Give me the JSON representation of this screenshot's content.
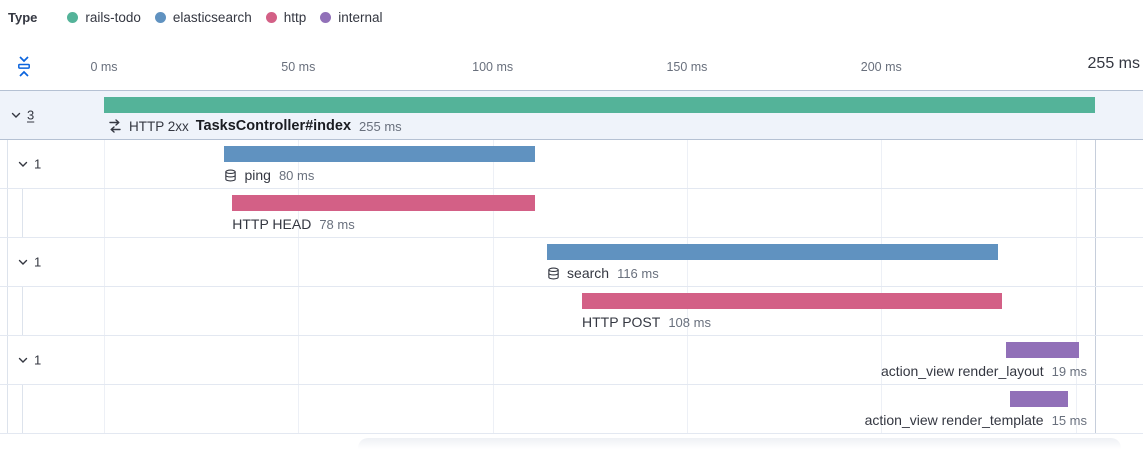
{
  "legend": {
    "title": "Type",
    "items": [
      {
        "label": "rails-todo",
        "color": "#54B399"
      },
      {
        "label": "elasticsearch",
        "color": "#6092C0"
      },
      {
        "label": "http",
        "color": "#D36086"
      },
      {
        "label": "internal",
        "color": "#9170B8"
      }
    ]
  },
  "axis": {
    "ticks": [
      {
        "label": "0 ms",
        "ms": 0
      },
      {
        "label": "50 ms",
        "ms": 50
      },
      {
        "label": "100 ms",
        "ms": 100
      },
      {
        "label": "150 ms",
        "ms": 150
      },
      {
        "label": "200 ms",
        "ms": 200
      }
    ],
    "grid_ms": [
      0,
      50,
      100,
      150,
      200,
      250
    ],
    "total": {
      "label": "255 ms",
      "ms": 255
    }
  },
  "chart_data": {
    "type": "waterfall",
    "title": "Trace timeline waterfall",
    "x_unit": "ms",
    "x_range": [
      0,
      255
    ],
    "items": [
      {
        "kind": "transaction",
        "toggle": "3",
        "indent": 0,
        "selected": true,
        "type": "rails-todo",
        "color": "#54B399",
        "icon": "merge",
        "prefix": "HTTP 2xx",
        "name": "TasksController#index",
        "name_bold": true,
        "start_ms": 0,
        "duration_ms": 255,
        "duration_label": "255 ms",
        "label_align": "start"
      },
      {
        "kind": "span",
        "toggle": "1",
        "indent": 1,
        "type": "elasticsearch",
        "color": "#6092C0",
        "icon": "database",
        "name": "ping",
        "start_ms": 31,
        "duration_ms": 80,
        "duration_label": "80 ms",
        "label_align": "start"
      },
      {
        "kind": "span",
        "indent": 2,
        "type": "http",
        "color": "#D36086",
        "name": "HTTP HEAD",
        "start_ms": 33,
        "duration_ms": 78,
        "duration_label": "78 ms",
        "label_align": "start"
      },
      {
        "kind": "span",
        "toggle": "1",
        "indent": 1,
        "type": "elasticsearch",
        "color": "#6092C0",
        "icon": "database",
        "name": "search",
        "start_ms": 114,
        "duration_ms": 116,
        "duration_label": "116 ms",
        "label_align": "start"
      },
      {
        "kind": "span",
        "indent": 2,
        "type": "http",
        "color": "#D36086",
        "name": "HTTP POST",
        "start_ms": 123,
        "duration_ms": 108,
        "duration_label": "108 ms",
        "label_align": "start"
      },
      {
        "kind": "span",
        "toggle": "1",
        "indent": 1,
        "type": "internal",
        "color": "#9170B8",
        "name": "action_view render_layout",
        "start_ms": 232,
        "duration_ms": 19,
        "duration_label": "19 ms",
        "label_align": "end"
      },
      {
        "kind": "span",
        "indent": 2,
        "type": "internal",
        "color": "#9170B8",
        "name": "action_view render_template",
        "start_ms": 233,
        "duration_ms": 15,
        "duration_label": "15 ms",
        "label_align": "end"
      }
    ]
  }
}
